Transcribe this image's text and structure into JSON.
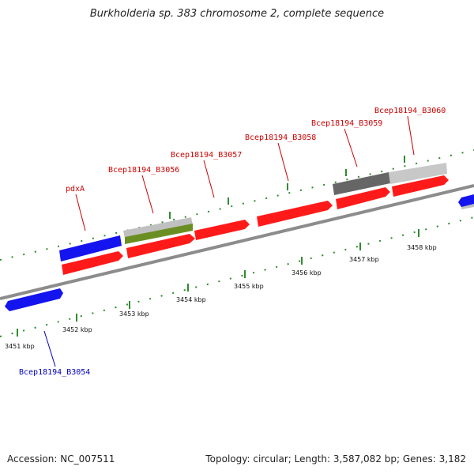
{
  "title": "Burkholderia sp. 383 chromosome 2, complete sequence",
  "footer": {
    "accession": "Accession: NC_007511",
    "topology": "Topology: circular; Length: 3,587,082 bp; Genes: 3,182"
  },
  "colors": {
    "forward_gene": "#ff1a1a",
    "reverse_gene": "#1414ee",
    "label_top": "#cc0000",
    "label_bottom": "#0000bb",
    "tick": "#2e8b2e",
    "backbone": "#8c8c8c"
  },
  "scale_labels": [
    "3451 kbp",
    "3452 kbp",
    "3453 kbp",
    "3454 kbp",
    "3455 kbp",
    "3456 kbp",
    "3457 kbp",
    "3458 kbp"
  ],
  "gene_labels_top": [
    "pdxA",
    "Bcep18194_B3056",
    "Bcep18194_B3057",
    "Bcep18194_B3058",
    "Bcep18194_B3059",
    "Bcep18194_B3060"
  ],
  "gene_labels_bottom": [
    "Bcep18194_B3054"
  ]
}
